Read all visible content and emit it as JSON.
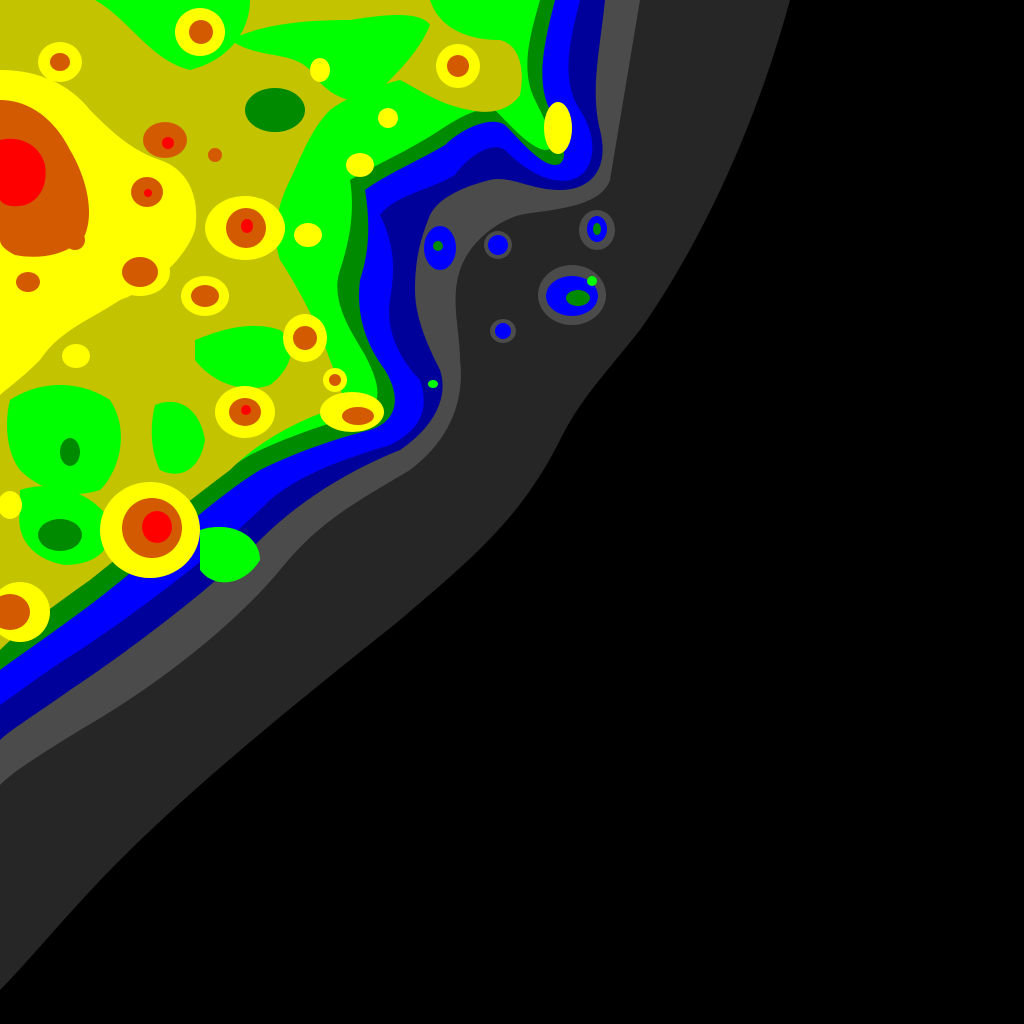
{
  "map": {
    "kind": "light-pollution-contour",
    "palette": {
      "background": "#000000",
      "dark_gray": "#262626",
      "mid_gray": "#4b4b4b",
      "dark_blue": "#00009a",
      "blue": "#0000ff",
      "dark_green": "#008a00",
      "green": "#00ff00",
      "olive": "#c3c300",
      "yellow": "#ffff00",
      "orange": "#ff7f00",
      "dark_orange": "#d35a00",
      "red": "#ff0000"
    },
    "bands": [
      "background",
      "dark_gray",
      "mid_gray",
      "dark_blue",
      "blue",
      "dark_green",
      "green",
      "olive",
      "yellow",
      "orange",
      "red"
    ]
  }
}
